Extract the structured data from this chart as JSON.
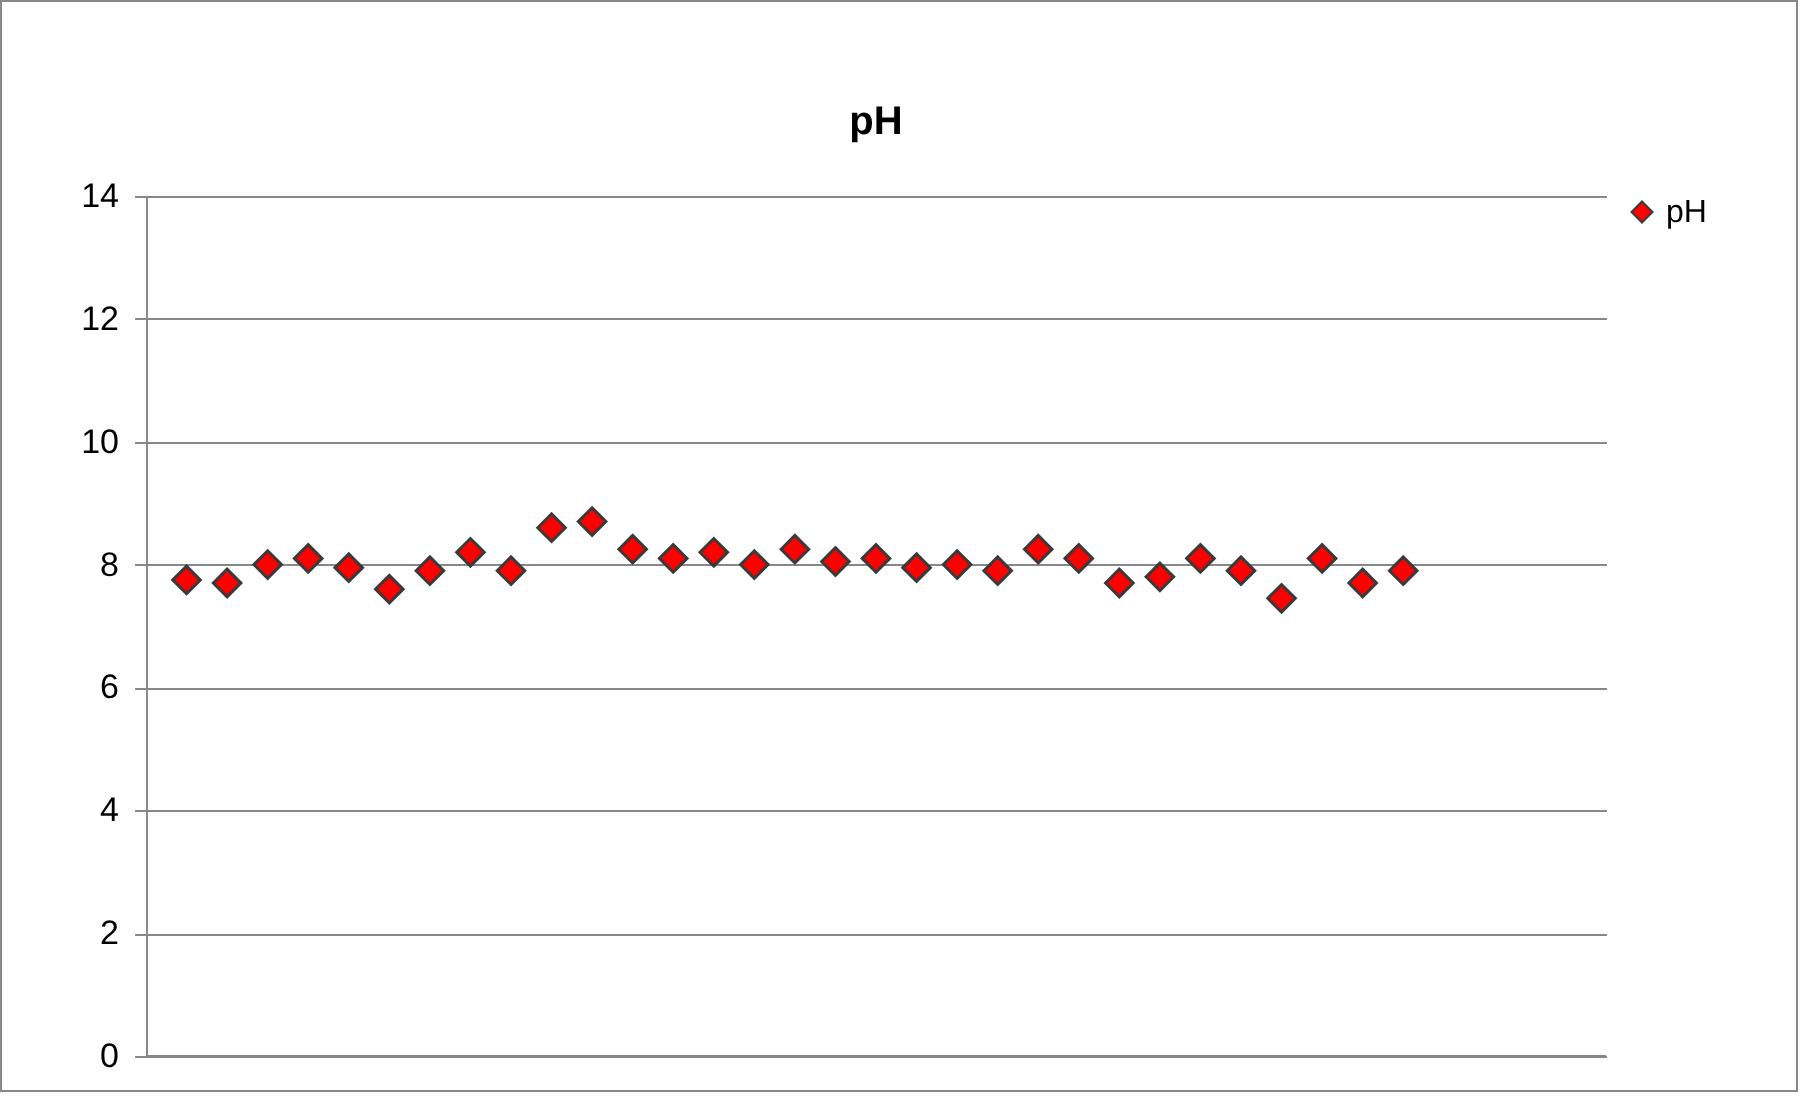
{
  "chart_data": {
    "type": "scatter",
    "title": "pH",
    "categories": [
      null,
      null,
      null,
      null,
      null,
      null,
      null,
      null,
      null,
      null,
      null,
      null,
      null,
      null,
      null,
      null,
      null,
      null,
      null,
      null,
      null,
      null,
      null,
      null,
      null,
      null,
      null,
      null,
      null,
      null,
      null,
      null,
      null,
      null,
      null
    ],
    "series": [
      {
        "name": "pH",
        "color": "#ff0000",
        "values": [
          7.75,
          7.7,
          8.0,
          8.1,
          7.95,
          7.6,
          7.9,
          8.2,
          7.9,
          8.6,
          8.7,
          8.25,
          8.1,
          8.2,
          8.0,
          8.25,
          8.05,
          8.1,
          7.95,
          8.0,
          7.9,
          8.25,
          8.1,
          7.7,
          7.8,
          8.1,
          7.9,
          7.45,
          8.1,
          7.7,
          7.9,
          null,
          null,
          null,
          null
        ]
      }
    ],
    "ylim": [
      0,
      14
    ],
    "yticks": [
      0,
      2,
      4,
      6,
      8,
      10,
      12,
      14
    ],
    "grid": "y",
    "legend": "right",
    "marker": "diamond",
    "tick_labels": "y"
  }
}
